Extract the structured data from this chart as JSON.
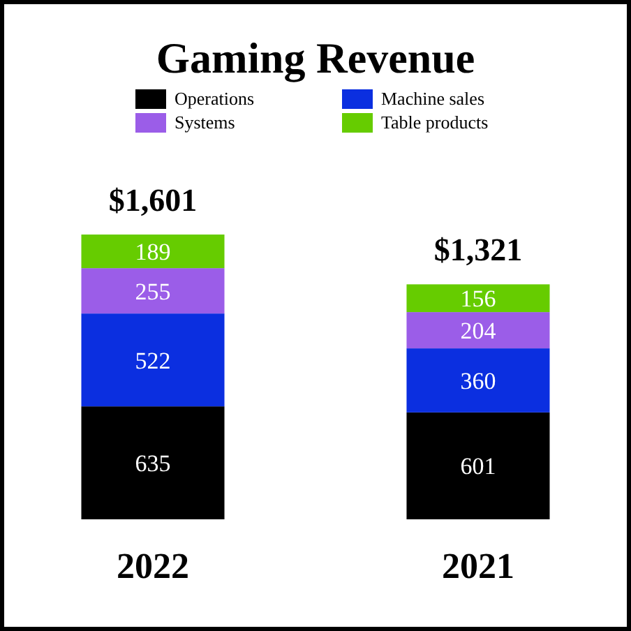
{
  "chart_data": {
    "type": "bar",
    "title": "Gaming Revenue",
    "categories": [
      "2022",
      "2021"
    ],
    "stacked": true,
    "data_labels": true,
    "legend": "top",
    "totals": [
      "$1,601",
      "$1,321"
    ],
    "series": [
      {
        "name": "Operations",
        "color": "#000000",
        "values": [
          635,
          601
        ]
      },
      {
        "name": "Machine sales",
        "color": "#0b2fe0",
        "values": [
          522,
          360
        ]
      },
      {
        "name": "Systems",
        "color": "#9b5de8",
        "values": [
          255,
          204
        ]
      },
      {
        "name": "Table products",
        "color": "#66cc00",
        "values": [
          189,
          156
        ]
      }
    ]
  }
}
